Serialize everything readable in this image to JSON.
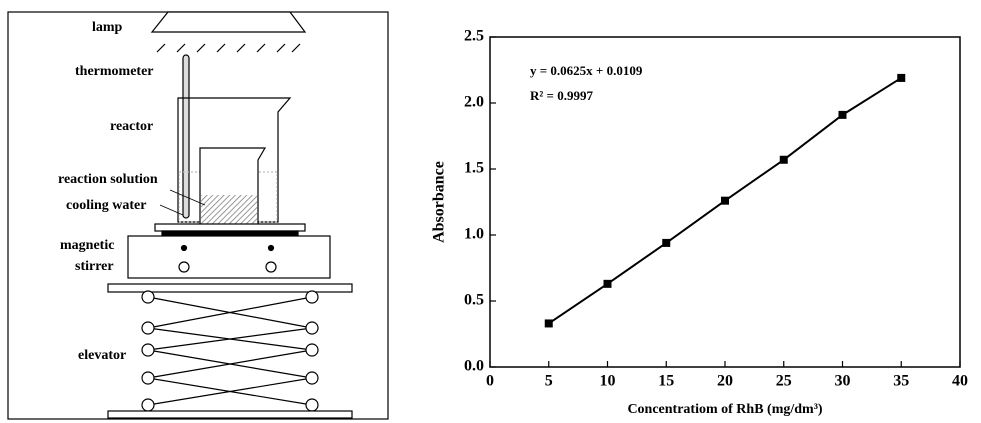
{
  "diagram": {
    "labels": [
      "lamp",
      "thermometer",
      "reactor",
      "reaction solution",
      "cooling water",
      "magnetic",
      "stirrer",
      "elevator"
    ]
  },
  "chart_data": {
    "type": "line",
    "annotations": [
      "y = 0.0625x + 0.0109",
      "R² = 0.9997"
    ],
    "x_label": "Concentratiom of RhB (mg/dm³)",
    "y_label": "Absorbance",
    "x": [
      5,
      10,
      15,
      20,
      25,
      30,
      35
    ],
    "series": [
      {
        "color": "#000000",
        "values": [
          0.33,
          0.63,
          0.94,
          1.26,
          1.57,
          1.91,
          2.19
        ]
      }
    ],
    "xlim": [
      0,
      40
    ],
    "xticks": [
      0,
      5,
      10,
      15,
      20,
      25,
      30,
      35,
      40
    ],
    "ylim": [
      0,
      2.5
    ],
    "yticks": [
      {
        "value": 0,
        "label": "0.0"
      },
      0.5,
      {
        "value": 1,
        "label": "1.0"
      },
      1.5,
      {
        "value": 2,
        "label": "2.0"
      },
      2.5
    ]
  }
}
